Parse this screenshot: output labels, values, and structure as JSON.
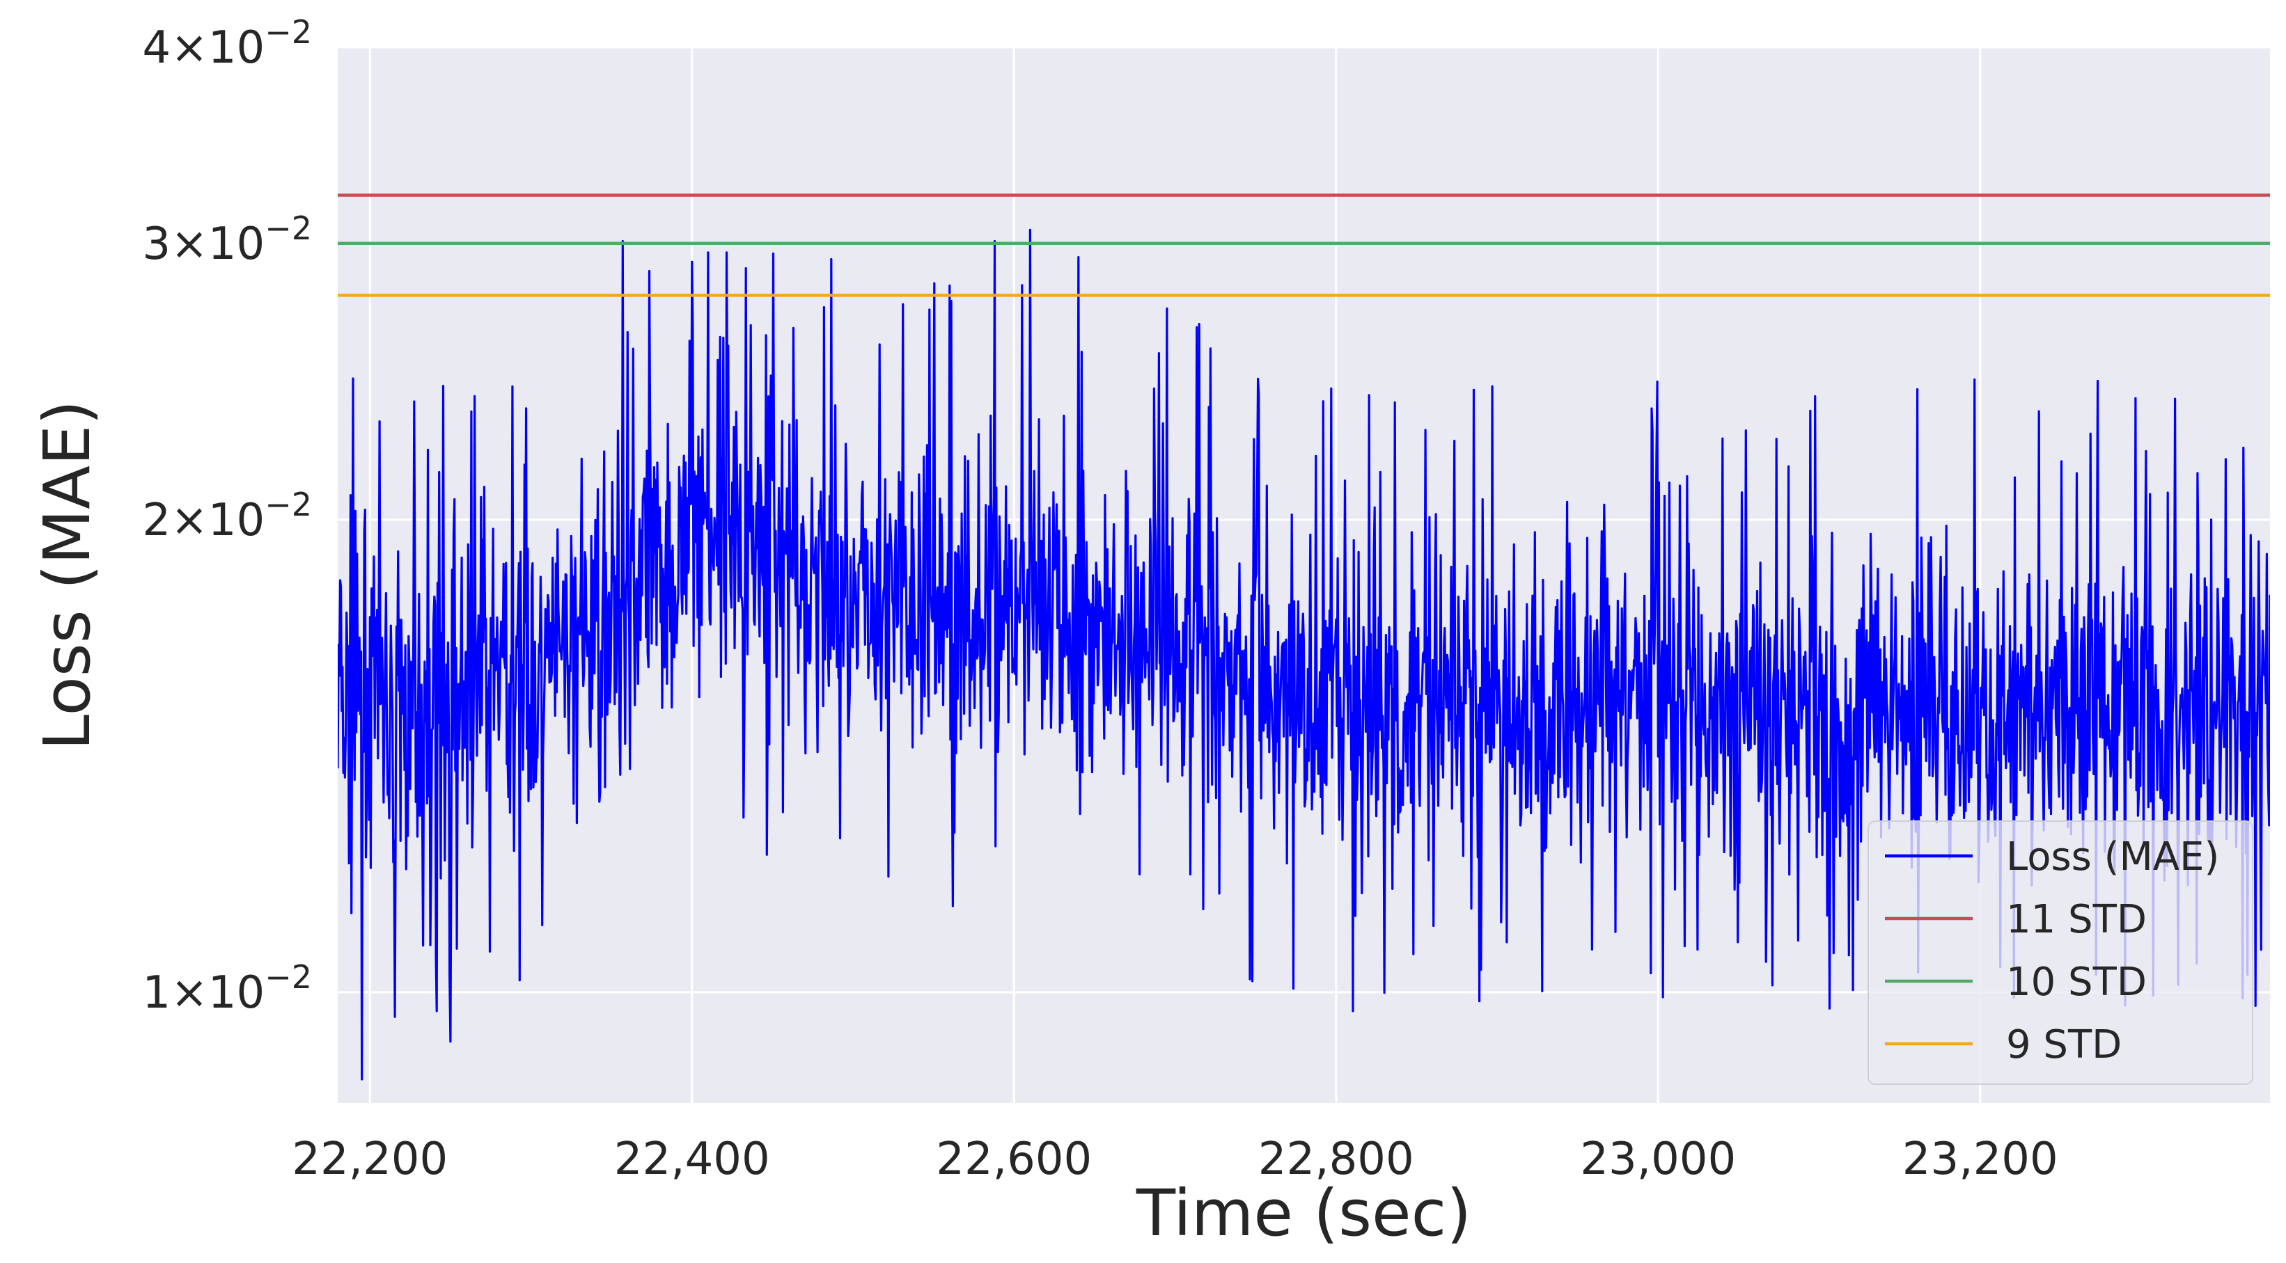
{
  "chart_data": {
    "type": "line",
    "xlabel": "Time (sec)",
    "ylabel": "Loss (MAE)",
    "title": "",
    "xlim": [
      22180,
      23380
    ],
    "ylim": [
      0.0085,
      0.04
    ],
    "yscale": "log",
    "x_ticks": [
      {
        "value": 22200,
        "label": "22,200"
      },
      {
        "value": 22400,
        "label": "22,400"
      },
      {
        "value": 22600,
        "label": "22,600"
      },
      {
        "value": 22800,
        "label": "22,800"
      },
      {
        "value": 23000,
        "label": "23,000"
      },
      {
        "value": 23200,
        "label": "23,200"
      }
    ],
    "y_ticks": [
      {
        "value": 0.01,
        "mantissa": "1",
        "base": "×10",
        "exp": "−2"
      },
      {
        "value": 0.02,
        "mantissa": "2",
        "base": "×10",
        "exp": "−2"
      },
      {
        "value": 0.03,
        "mantissa": "3",
        "base": "×10",
        "exp": "−2"
      },
      {
        "value": 0.04,
        "mantissa": "4",
        "base": "×10",
        "exp": "−2"
      }
    ],
    "grid": true,
    "legend_position": "lower-right",
    "series": [
      {
        "name": "Loss (MAE)",
        "color": "#0000ff",
        "style": "noisy-line",
        "trend_x": [
          22180,
          22220,
          22260,
          22300,
          22340,
          22380,
          22400,
          22440,
          22480,
          22520,
          22560,
          22600,
          22640,
          22680,
          22720,
          22760,
          22800,
          22850,
          22900,
          22950,
          23000,
          23050,
          23100,
          23150,
          23200,
          23250,
          23300,
          23380
        ],
        "trend_y": [
          0.0155,
          0.015,
          0.0152,
          0.016,
          0.0172,
          0.0185,
          0.02,
          0.0192,
          0.0182,
          0.0178,
          0.0176,
          0.0174,
          0.0172,
          0.017,
          0.0165,
          0.0155,
          0.015,
          0.015,
          0.0152,
          0.0153,
          0.0152,
          0.0153,
          0.015,
          0.015,
          0.0152,
          0.0152,
          0.0151,
          0.0152
        ],
        "peaks": [
          {
            "x": 22357,
            "y": 0.0301
          },
          {
            "x": 22400,
            "y": 0.0292
          },
          {
            "x": 22560,
            "y": 0.0282
          },
          {
            "x": 22588,
            "y": 0.0301
          },
          {
            "x": 22610,
            "y": 0.0306
          },
          {
            "x": 22640,
            "y": 0.0294
          },
          {
            "x": 22195,
            "y": 0.0088
          },
          {
            "x": 22250,
            "y": 0.0093
          }
        ]
      },
      {
        "name": "11 STD",
        "color": "#c44e52",
        "style": "hline",
        "y": 0.0322
      },
      {
        "name": "10 STD",
        "color": "#55a868",
        "style": "hline",
        "y": 0.03
      },
      {
        "name": "9 STD",
        "color": "#f5a623",
        "style": "hline",
        "y": 0.0278
      }
    ]
  }
}
